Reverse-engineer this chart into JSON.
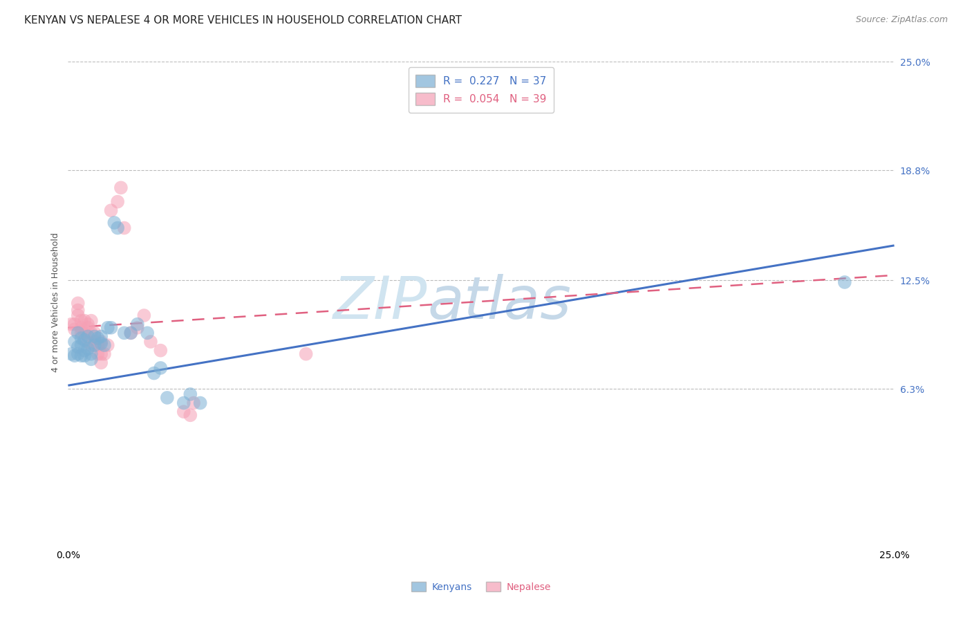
{
  "title": "KENYAN VS NEPALESE 4 OR MORE VEHICLES IN HOUSEHOLD CORRELATION CHART",
  "source": "Source: ZipAtlas.com",
  "ylabel": "4 or more Vehicles in Household",
  "xlim": [
    0.0,
    0.25
  ],
  "ylim": [
    -0.025,
    0.25
  ],
  "xtick_vals": [
    0.0,
    0.25
  ],
  "xtick_labels": [
    "0.0%",
    "25.0%"
  ],
  "ytick_right_vals": [
    0.063,
    0.125,
    0.188,
    0.25
  ],
  "ytick_right_labels": [
    "6.3%",
    "12.5%",
    "18.8%",
    "25.0%"
  ],
  "kenyan_R": 0.227,
  "kenyan_N": 37,
  "nepalese_R": 0.054,
  "nepalese_N": 39,
  "kenyan_color": "#7BAFD4",
  "nepalese_color": "#F5A0B5",
  "kenyan_line_color": "#4472C4",
  "nepalese_line_color": "#E06080",
  "background_color": "#FFFFFF",
  "grid_color": "#BBBBBB",
  "title_fontsize": 11,
  "axis_label_fontsize": 9,
  "tick_fontsize": 10,
  "legend_fontsize": 11,
  "kenyan_x": [
    0.001,
    0.002,
    0.002,
    0.003,
    0.003,
    0.003,
    0.004,
    0.004,
    0.004,
    0.005,
    0.005,
    0.005,
    0.006,
    0.006,
    0.007,
    0.007,
    0.008,
    0.008,
    0.009,
    0.01,
    0.01,
    0.011,
    0.012,
    0.013,
    0.014,
    0.015,
    0.017,
    0.019,
    0.021,
    0.024,
    0.026,
    0.028,
    0.03,
    0.035,
    0.037,
    0.04,
    0.235
  ],
  "kenyan_y": [
    0.083,
    0.09,
    0.082,
    0.083,
    0.087,
    0.095,
    0.088,
    0.092,
    0.082,
    0.085,
    0.082,
    0.091,
    0.086,
    0.093,
    0.083,
    0.08,
    0.088,
    0.093,
    0.092,
    0.093,
    0.089,
    0.088,
    0.098,
    0.098,
    0.158,
    0.155,
    0.095,
    0.095,
    0.1,
    0.095,
    0.072,
    0.075,
    0.058,
    0.055,
    0.06,
    0.055,
    0.124
  ],
  "nepalese_x": [
    0.001,
    0.002,
    0.002,
    0.003,
    0.003,
    0.003,
    0.004,
    0.004,
    0.004,
    0.005,
    0.005,
    0.006,
    0.006,
    0.006,
    0.007,
    0.007,
    0.007,
    0.008,
    0.008,
    0.009,
    0.009,
    0.01,
    0.01,
    0.01,
    0.011,
    0.012,
    0.013,
    0.015,
    0.016,
    0.017,
    0.019,
    0.021,
    0.023,
    0.025,
    0.028,
    0.035,
    0.037,
    0.038,
    0.072
  ],
  "nepalese_y": [
    0.1,
    0.1,
    0.097,
    0.108,
    0.105,
    0.112,
    0.095,
    0.102,
    0.098,
    0.095,
    0.102,
    0.09,
    0.098,
    0.1,
    0.088,
    0.095,
    0.102,
    0.09,
    0.095,
    0.083,
    0.088,
    0.078,
    0.083,
    0.09,
    0.083,
    0.088,
    0.165,
    0.17,
    0.178,
    0.155,
    0.095,
    0.098,
    0.105,
    0.09,
    0.085,
    0.05,
    0.048,
    0.055,
    0.083
  ]
}
